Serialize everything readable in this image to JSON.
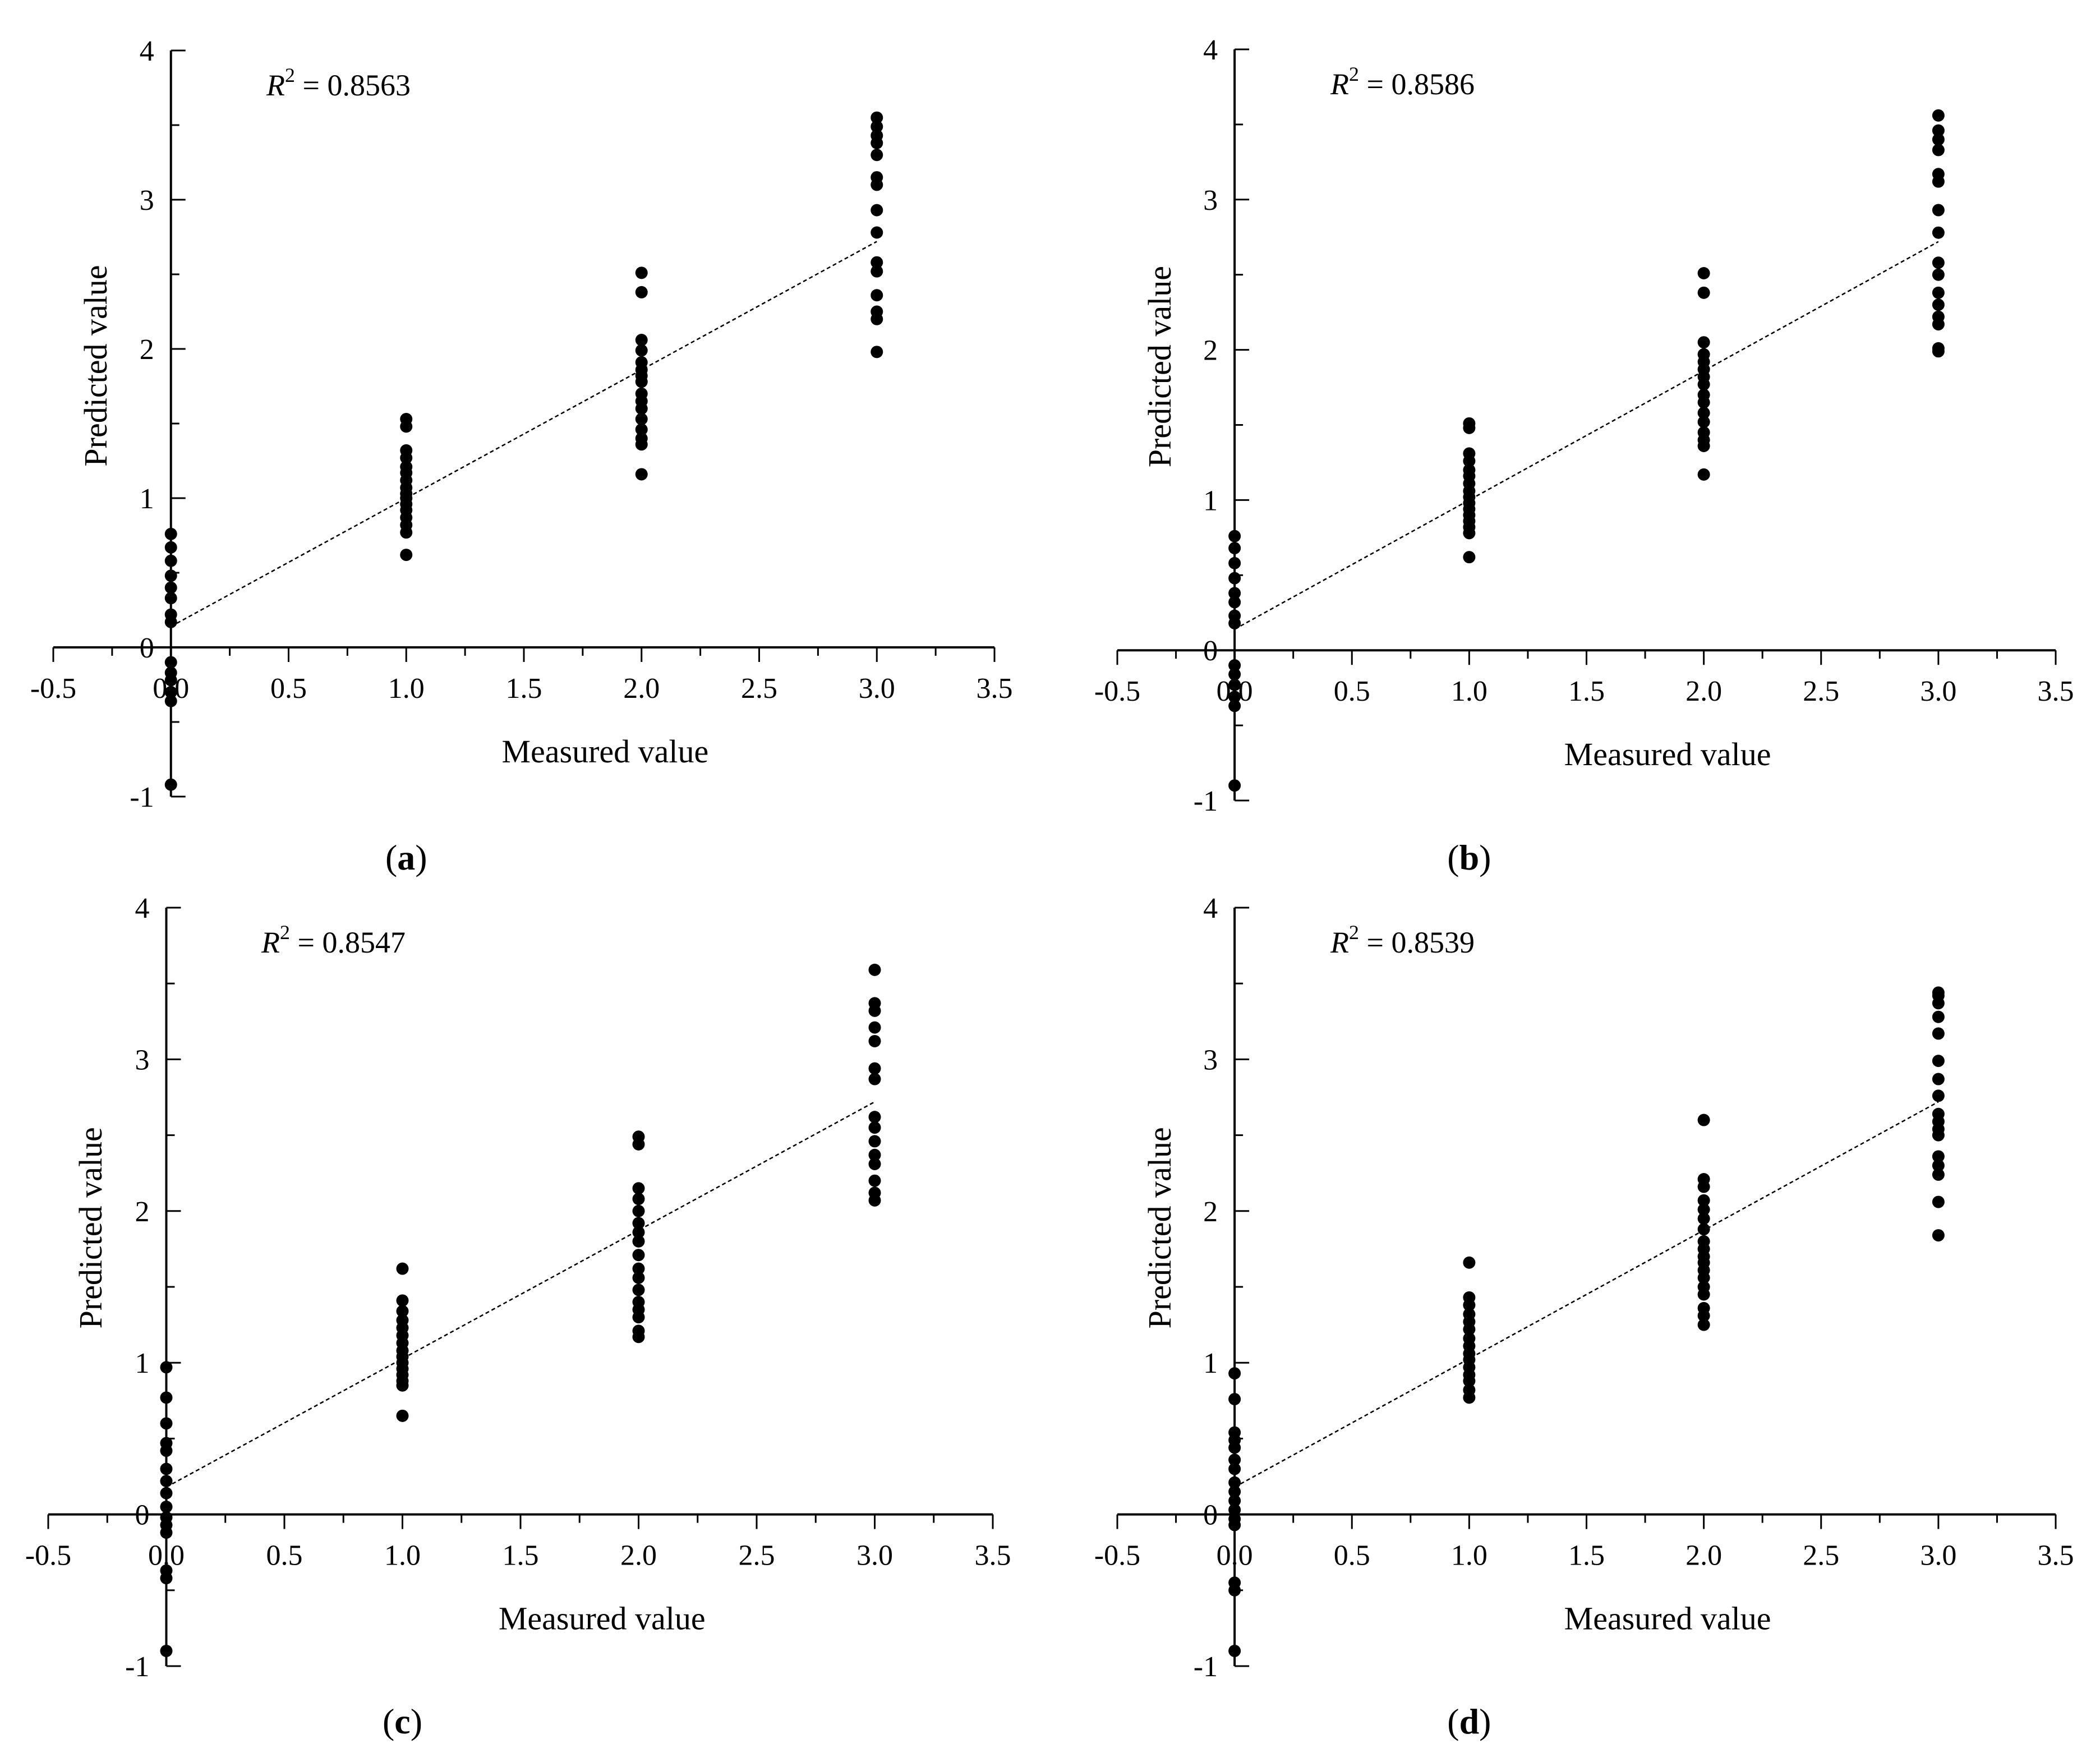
{
  "figure": {
    "x_axis_title": "Measured value",
    "y_axis_title": "Predicted value",
    "x_tick_labels": [
      "-0.5",
      "0.0",
      "0.5",
      "1.0",
      "1.5",
      "2.0",
      "2.5",
      "3.0",
      "3.5"
    ],
    "y_tick_labels": [
      "-1",
      "0",
      "1",
      "2",
      "3",
      "4"
    ],
    "r2_symbol": "R",
    "r2_superscript": "2",
    "r2_equals": " = "
  },
  "chart_data": [
    {
      "type": "scatter",
      "panel_label": "a",
      "r2": "0.8563",
      "xlabel": "Measured value",
      "ylabel": "Predicted value",
      "xlim": [
        -0.5,
        3.5
      ],
      "ylim": [
        -1,
        4
      ],
      "fit_line": {
        "x": [
          0,
          3
        ],
        "y": [
          0.14,
          2.72
        ]
      },
      "groups": [
        {
          "x": 0,
          "y": [
            0.76,
            0.67,
            0.58,
            0.48,
            0.4,
            0.33,
            0.22,
            0.17,
            -0.1,
            -0.17,
            -0.22,
            -0.3,
            -0.36,
            -0.92
          ]
        },
        {
          "x": 1,
          "y": [
            1.53,
            1.48,
            1.32,
            1.27,
            1.21,
            1.17,
            1.12,
            1.07,
            1.03,
            1.0,
            0.96,
            0.92,
            0.87,
            0.82,
            0.77,
            0.62
          ]
        },
        {
          "x": 2,
          "y": [
            2.51,
            2.38,
            2.06,
            1.99,
            1.91,
            1.86,
            1.82,
            1.78,
            1.7,
            1.65,
            1.6,
            1.53,
            1.46,
            1.4,
            1.36,
            1.16
          ]
        },
        {
          "x": 3,
          "y": [
            3.55,
            3.49,
            3.43,
            3.38,
            3.3,
            3.15,
            3.1,
            2.93,
            2.78,
            2.58,
            2.52,
            2.36,
            2.25,
            2.2,
            1.98
          ]
        }
      ]
    },
    {
      "type": "scatter",
      "panel_label": "b",
      "r2": "0.8586",
      "xlabel": "Measured value",
      "ylabel": "Predicted value",
      "xlim": [
        -0.5,
        3.5
      ],
      "ylim": [
        -1,
        4
      ],
      "fit_line": {
        "x": [
          0,
          3
        ],
        "y": [
          0.14,
          2.72
        ]
      },
      "groups": [
        {
          "x": 0,
          "y": [
            0.76,
            0.68,
            0.58,
            0.48,
            0.38,
            0.32,
            0.23,
            0.18,
            -0.1,
            -0.16,
            -0.23,
            -0.31,
            -0.37,
            -0.9
          ]
        },
        {
          "x": 1,
          "y": [
            1.51,
            1.48,
            1.31,
            1.26,
            1.2,
            1.16,
            1.11,
            1.06,
            1.02,
            0.98,
            0.94,
            0.9,
            0.86,
            0.82,
            0.78,
            0.62
          ]
        },
        {
          "x": 2,
          "y": [
            2.51,
            2.38,
            2.05,
            1.97,
            1.92,
            1.87,
            1.82,
            1.77,
            1.7,
            1.65,
            1.58,
            1.52,
            1.45,
            1.4,
            1.36,
            1.17
          ]
        },
        {
          "x": 3,
          "y": [
            3.56,
            3.46,
            3.4,
            3.33,
            3.17,
            3.12,
            2.93,
            2.78,
            2.58,
            2.5,
            2.38,
            2.3,
            2.22,
            2.17,
            2.01,
            1.99
          ]
        }
      ]
    },
    {
      "type": "scatter",
      "panel_label": "c",
      "r2": "0.8547",
      "xlabel": "Measured value",
      "ylabel": "Predicted value",
      "xlim": [
        -0.5,
        3.5
      ],
      "ylim": [
        -1,
        4
      ],
      "fit_line": {
        "x": [
          0,
          3
        ],
        "y": [
          0.18,
          2.72
        ]
      },
      "groups": [
        {
          "x": 0,
          "y": [
            0.97,
            0.77,
            0.6,
            0.47,
            0.42,
            0.3,
            0.22,
            0.14,
            0.05,
            -0.02,
            -0.07,
            -0.12,
            -0.37,
            -0.42,
            -0.9
          ]
        },
        {
          "x": 1,
          "y": [
            1.62,
            1.41,
            1.34,
            1.28,
            1.23,
            1.18,
            1.13,
            1.08,
            1.04,
            1.0,
            0.96,
            0.92,
            0.88,
            0.85,
            0.65
          ]
        },
        {
          "x": 2,
          "y": [
            2.49,
            2.44,
            2.15,
            2.08,
            2.0,
            1.92,
            1.86,
            1.8,
            1.71,
            1.62,
            1.56,
            1.48,
            1.4,
            1.35,
            1.3,
            1.21,
            1.17
          ]
        },
        {
          "x": 3,
          "y": [
            3.59,
            3.37,
            3.32,
            3.21,
            3.12,
            2.94,
            2.87,
            2.62,
            2.55,
            2.46,
            2.37,
            2.31,
            2.2,
            2.12,
            2.07
          ]
        }
      ]
    },
    {
      "type": "scatter",
      "panel_label": "d",
      "r2": "0.8539",
      "xlabel": "Measured value",
      "ylabel": "Predicted value",
      "xlim": [
        -0.5,
        3.5
      ],
      "ylim": [
        -1,
        4
      ],
      "fit_line": {
        "x": [
          0,
          3
        ],
        "y": [
          0.18,
          2.72
        ]
      },
      "groups": [
        {
          "x": 0,
          "y": [
            0.93,
            0.76,
            0.54,
            0.49,
            0.44,
            0.36,
            0.3,
            0.21,
            0.15,
            0.09,
            0.03,
            -0.03,
            -0.07,
            -0.45,
            -0.5,
            -0.9
          ]
        },
        {
          "x": 1,
          "y": [
            1.66,
            1.43,
            1.38,
            1.32,
            1.27,
            1.22,
            1.16,
            1.11,
            1.06,
            1.02,
            0.97,
            0.92,
            0.88,
            0.82,
            0.77
          ]
        },
        {
          "x": 2,
          "y": [
            2.6,
            2.21,
            2.16,
            2.07,
            2.01,
            1.95,
            1.88,
            1.8,
            1.75,
            1.7,
            1.66,
            1.61,
            1.56,
            1.5,
            1.45,
            1.36,
            1.31,
            1.25
          ]
        },
        {
          "x": 3,
          "y": [
            3.44,
            3.42,
            3.37,
            3.28,
            3.17,
            2.99,
            2.87,
            2.76,
            2.64,
            2.59,
            2.54,
            2.5,
            2.36,
            2.3,
            2.24,
            2.06,
            1.84
          ]
        }
      ]
    }
  ]
}
